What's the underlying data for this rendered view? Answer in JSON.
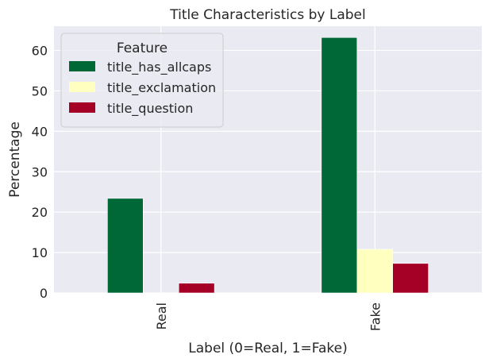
{
  "chart_data": {
    "type": "bar",
    "title": "Title Characteristics by Label",
    "xlabel": "Label (0=Real, 1=Fake)",
    "ylabel": "Percentage",
    "categories": [
      "Real",
      "Fake"
    ],
    "ylim": [
      0,
      66
    ],
    "yticks": [
      0,
      10,
      20,
      30,
      40,
      50,
      60
    ],
    "grid": true,
    "legend": {
      "title": "Feature",
      "placement": "top-left"
    },
    "series": [
      {
        "name": "title_has_allcaps",
        "color": "#006837",
        "values": [
          23.4,
          63.2
        ]
      },
      {
        "name": "title_exclamation",
        "color": "#ffffbf",
        "values": [
          0.0,
          10.8
        ]
      },
      {
        "name": "title_question",
        "color": "#a50026",
        "values": [
          2.4,
          7.3
        ]
      }
    ]
  }
}
